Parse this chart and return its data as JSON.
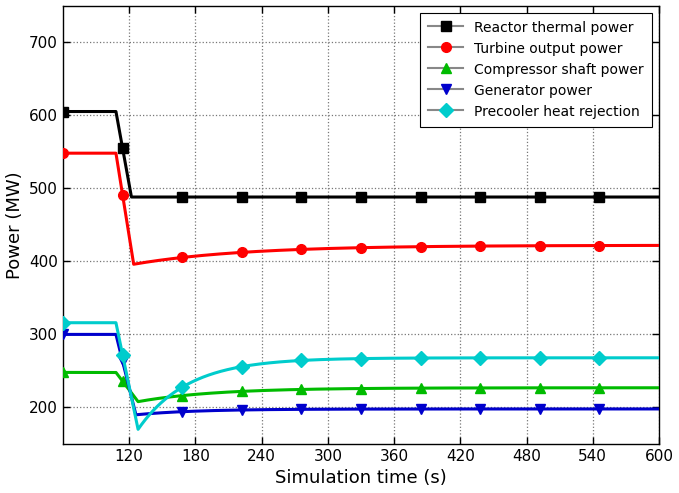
{
  "xlabel": "Simulation time (s)",
  "ylabel": "Power (MW)",
  "xlim": [
    60,
    600
  ],
  "ylim": [
    150,
    750
  ],
  "yticks": [
    200,
    300,
    400,
    500,
    600,
    700
  ],
  "xticks": [
    120,
    180,
    240,
    300,
    360,
    420,
    480,
    540,
    600
  ],
  "background_color": "#ffffff",
  "series": [
    {
      "label": "Reactor thermal power",
      "color": "#000000",
      "marker": "s",
      "v_init": 605,
      "t_drop_start": 108,
      "t_drop_end": 122,
      "v_min": 488,
      "v_final": 488,
      "tau_rise": 1
    },
    {
      "label": "Turbine output power",
      "color": "#ff0000",
      "marker": "o",
      "v_init": 548,
      "t_drop_start": 108,
      "t_drop_end": 124,
      "v_min": 396,
      "v_final": 422,
      "tau_rise": 100
    },
    {
      "label": "Compressor shaft power",
      "color": "#00bb00",
      "marker": "^",
      "v_init": 248,
      "t_drop_start": 108,
      "t_drop_end": 128,
      "v_min": 208,
      "v_final": 227,
      "tau_rise": 70
    },
    {
      "label": "Generator power",
      "color": "#0000cc",
      "marker": "v",
      "v_init": 300,
      "t_drop_start": 108,
      "t_drop_end": 126,
      "v_min": 190,
      "v_final": 198,
      "tau_rise": 55
    },
    {
      "label": "Precooler heat rejection",
      "color": "#00cccc",
      "marker": "D",
      "v_init": 316,
      "t_drop_start": 108,
      "t_drop_end": 128,
      "v_min": 170,
      "v_final": 268,
      "tau_rise": 45
    }
  ]
}
